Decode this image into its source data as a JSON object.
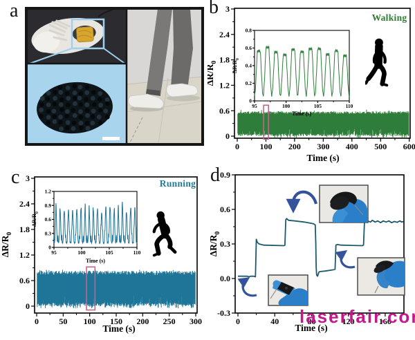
{
  "figure": {
    "background": "#ffffff",
    "panels": [
      {
        "label": "a"
      },
      {
        "label": "b"
      },
      {
        "label": "c"
      },
      {
        "label": "d"
      }
    ]
  },
  "panel_a": {
    "icons": [
      "sneaker-top-view-photo",
      "pressure-sensor-highlight-box",
      "porous-sensor-closeup-photo",
      "scale-bar",
      "walking-legs-photo"
    ]
  },
  "chart_data": [
    {
      "id": "b",
      "type": "line",
      "title": "Walking",
      "title_color": "#2e7d32",
      "xlabel": "Time (s)",
      "ylabel_main": "ΔR/R",
      "ylabel_sub": "0",
      "xlim": [
        0,
        600
      ],
      "ylim": [
        0,
        3
      ],
      "xticks": [
        0,
        100,
        200,
        300,
        400,
        500,
        600
      ],
      "xtick_labels": [
        "0",
        "100",
        "200",
        "300",
        "400",
        "500",
        "600"
      ],
      "yticks": [
        0,
        0.6,
        1.2,
        1.8,
        2.4,
        3
      ],
      "ytick_labels": [
        "0",
        "0.6",
        "1.2",
        "1.8",
        "2.4",
        "3"
      ],
      "grid": false,
      "icon": "walking-person-silhouette",
      "series": [
        {
          "name": "walking signal band",
          "type": "noise_band",
          "color": "#2e7d3a",
          "x_range": [
            2,
            598
          ],
          "top": 0.555,
          "top_jitter": 0.03,
          "bottom": 0.03,
          "bottom_jitter": 0.03,
          "notch": 0.13,
          "notch_rate": 0.15,
          "under_rate": 0.07,
          "samples": 390,
          "seed": 7
        }
      ],
      "highlight_box": {
        "x0": 92,
        "x1": 109,
        "y0": -0.07,
        "y1": 0.73,
        "color": "#c4648f"
      },
      "inset": {
        "xlim": [
          95,
          110
        ],
        "ylim": [
          0,
          0.8
        ],
        "xticks": [
          95,
          100,
          105,
          110
        ],
        "xtick_labels": [
          "95",
          "100",
          "105",
          "110"
        ],
        "yticks": [
          0,
          0.2,
          0.4,
          0.6,
          0.8
        ],
        "ytick_labels": [
          "0",
          "0.2",
          "0.4",
          "0.6",
          "0.8"
        ],
        "xlabel": "Time (s)",
        "ylabel_main": "ΔR/R",
        "ylabel_sub": "0",
        "series": {
          "name": "walking cycles",
          "type": "oscillation",
          "color": "#2e7d3a",
          "cycles": 11,
          "peak": 0.57,
          "trough": 0.06,
          "sharp": false,
          "seed": 3
        }
      }
    },
    {
      "id": "c",
      "type": "line",
      "title": "Running",
      "title_color": "#1f7a99",
      "xlabel": "Time (s)",
      "ylabel_main": "ΔR/R",
      "ylabel_sub": "0",
      "xlim": [
        0,
        300
      ],
      "ylim": [
        0,
        3
      ],
      "xticks": [
        0,
        50,
        100,
        150,
        200,
        250,
        300
      ],
      "xtick_labels": [
        "0",
        "50",
        "100",
        "150",
        "200",
        "250",
        "300"
      ],
      "yticks": [
        0,
        0.6,
        1.2,
        1.8,
        2.4,
        3
      ],
      "ytick_labels": [
        "0",
        "0.6",
        "1.2",
        "1.8",
        "2.4",
        "3"
      ],
      "grid": false,
      "icon": "running-person-silhouette",
      "series": [
        {
          "name": "running signal band",
          "type": "noise_band",
          "color": "#1e7597",
          "x_range": [
            1,
            299
          ],
          "top": 0.78,
          "top_jitter": 0.05,
          "bottom": 0.04,
          "bottom_jitter": 0.04,
          "notch": 0.18,
          "notch_rate": 0.15,
          "under_rate": 0.08,
          "samples": 430,
          "seed": 13
        }
      ],
      "highlight_box": {
        "x0": 94,
        "x1": 110,
        "y0": -0.09,
        "y1": 0.92,
        "color": "#c4648f"
      },
      "inset": {
        "xlim": [
          95,
          110
        ],
        "ylim": [
          0,
          1.2
        ],
        "xticks": [
          95,
          100,
          105,
          110
        ],
        "xtick_labels": [
          "95",
          "100",
          "105",
          "110"
        ],
        "yticks": [
          0,
          0.3,
          0.6,
          0.9,
          1.2
        ],
        "ytick_labels": [
          "0",
          "0.3",
          "0.6",
          "0.9",
          "1.2"
        ],
        "xlabel": "Time (s)",
        "ylabel_main": "ΔR/R",
        "ylabel_sub": "0",
        "series": {
          "name": "running cycles",
          "type": "oscillation",
          "color": "#1e7597",
          "cycles": 20,
          "peak": 0.82,
          "trough": 0.1,
          "sharp": true,
          "seed": 5
        }
      }
    },
    {
      "id": "d",
      "type": "line",
      "title": "",
      "title_color": "#000000",
      "xlabel": "Time (s)",
      "ylabel_main": "ΔR/R",
      "ylabel_sub": "0",
      "xlim": [
        0,
        180
      ],
      "ylim": [
        -0.3,
        0.9
      ],
      "xticks": [
        0,
        40,
        80,
        120,
        160
      ],
      "xtick_labels": [
        "0",
        "40",
        "80",
        "120",
        "160"
      ],
      "yticks": [
        -0.3,
        0,
        0.3,
        0.6,
        0.9
      ],
      "ytick_labels": [
        "-0.3",
        "0.0",
        "0.3",
        "0.6",
        "0.9"
      ],
      "grid": false,
      "arrow_color": "#34539b",
      "photo_icons": [
        "finger-straight-photo",
        "finger-fully-bent-photo",
        "finger-half-bent-photo"
      ],
      "series": [
        {
          "name": "finger bending response",
          "type": "steps",
          "color": "#1a5a6b",
          "points": [
            [
              0,
              0.02
            ],
            [
              10,
              0.02
            ],
            [
              12,
              0.015
            ],
            [
              14,
              0.02
            ],
            [
              17,
              0.02
            ],
            [
              19,
              0.015
            ],
            [
              20,
              0.34
            ],
            [
              21,
              0.315
            ],
            [
              23,
              0.3
            ],
            [
              28,
              0.29
            ],
            [
              50,
              0.285
            ],
            [
              51,
              0.29
            ],
            [
              52,
              0.51
            ],
            [
              53,
              0.52
            ],
            [
              55,
              0.505
            ],
            [
              62,
              0.5
            ],
            [
              72,
              0.49
            ],
            [
              82,
              0.475
            ],
            [
              84,
              0.465
            ],
            [
              84.6,
              0.3
            ],
            [
              85,
              0.1
            ],
            [
              85.5,
              0.03
            ],
            [
              86.5,
              0.02
            ],
            [
              88,
              0.055
            ],
            [
              89,
              0.06
            ],
            [
              95,
              0.065
            ],
            [
              103,
              0.075
            ],
            [
              105.5,
              0.08
            ],
            [
              106.5,
              0.29
            ],
            [
              108,
              0.295
            ],
            [
              112,
              0.29
            ],
            [
              135,
              0.285
            ],
            [
              136.5,
              0.29
            ],
            [
              137.5,
              0.5
            ],
            [
              139,
              0.515
            ],
            [
              141,
              0.5
            ],
            [
              144,
              0.49
            ],
            [
              146,
              0.505
            ],
            [
              149,
              0.49
            ],
            [
              152,
              0.5
            ],
            [
              155,
              0.485
            ],
            [
              158,
              0.5
            ],
            [
              161,
              0.49
            ],
            [
              164,
              0.5
            ],
            [
              167,
              0.485
            ],
            [
              170,
              0.495
            ],
            [
              173,
              0.488
            ],
            [
              176,
              0.5
            ],
            [
              178,
              0.49
            ],
            [
              180,
              0.495
            ]
          ]
        }
      ]
    }
  ],
  "watermark": {
    "text": "laserfair.com",
    "color": "#c3188c"
  }
}
